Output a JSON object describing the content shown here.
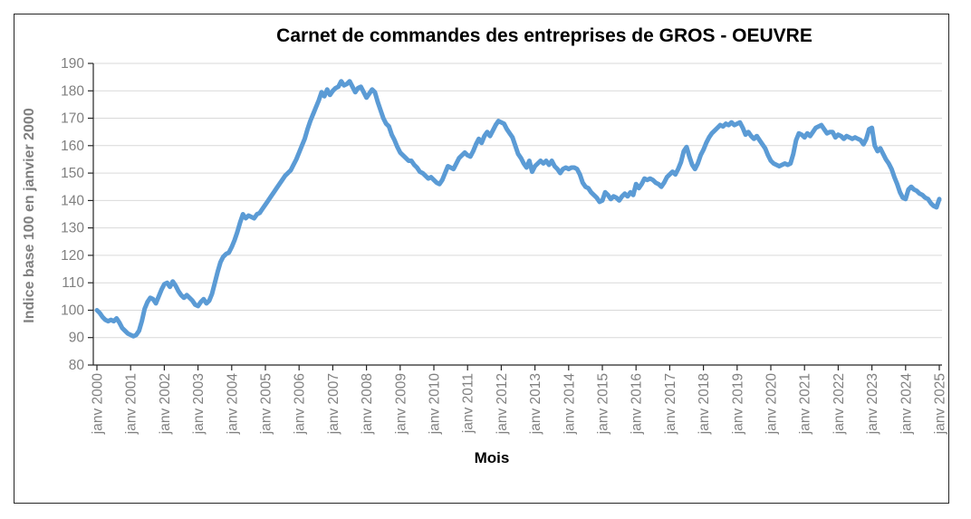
{
  "chart": {
    "title": "Carnet de commandes des entreprises de GROS - OEUVRE",
    "y_axis_title": "Indice base 100 en janvier 2000",
    "x_axis_title": "Mois"
  },
  "colors": {
    "line": "#5B9BD5",
    "grid": "#D9D9D9",
    "axis": "#262626",
    "tick_label": "#808080",
    "axis_title_gray": "#7f7f7f",
    "title_text": "#000000",
    "background": "#ffffff"
  },
  "chart_data": {
    "type": "line",
    "title": "Carnet de commandes des entreprises de GROS - OEUVRE",
    "xlabel": "Mois",
    "ylabel": "Indice base 100 en janvier 2000",
    "ylim": [
      80,
      190
    ],
    "y_ticks": [
      80,
      90,
      100,
      110,
      120,
      130,
      140,
      150,
      160,
      170,
      180,
      190
    ],
    "x_tick_labels": [
      "janv 2000",
      "janv 2001",
      "janv 2002",
      "janv 2003",
      "janv 2004",
      "janv 2005",
      "janv 2006",
      "janv 2007",
      "janv 2008",
      "janv 2009",
      "janv 2010",
      "janv 2011",
      "janv 2012",
      "janv 2013",
      "janv 2014",
      "janv 2015",
      "janv 2016",
      "janv 2017",
      "janv 2018",
      "janv 2019",
      "janv 2020",
      "janv 2021",
      "janv 2022",
      "janv 2023",
      "janv 2024",
      "janv 2025"
    ],
    "x_frequency": "monthly",
    "x_first": "janv 2000",
    "x_last": "janv 2025",
    "grid": true,
    "legend": "none",
    "series": [
      {
        "color": "#5B9BD5",
        "stroke_width": 5,
        "values": [
          100,
          99,
          97.5,
          96.5,
          96,
          96.5,
          96,
          97,
          95.5,
          93.5,
          92.5,
          91.5,
          91,
          90.5,
          91,
          92.5,
          96,
          100.5,
          103,
          104.5,
          104,
          102.5,
          105,
          107.5,
          109.5,
          110,
          108.5,
          110.5,
          109,
          107,
          105.5,
          104.5,
          105.5,
          104.5,
          103.5,
          102,
          101.5,
          103,
          104,
          102.5,
          103.5,
          106,
          110,
          114,
          117.5,
          119.5,
          120.5,
          121,
          123,
          125.5,
          128.5,
          132,
          135,
          133.5,
          134.5,
          134,
          133.5,
          135,
          135.5,
          137,
          138.5,
          140,
          141.5,
          143,
          144.5,
          146,
          147.5,
          149,
          150,
          151,
          153,
          155,
          157.5,
          160,
          162.5,
          166,
          169,
          171.5,
          174,
          176.5,
          179.5,
          178,
          180.5,
          178.5,
          180,
          181,
          181.5,
          183.5,
          182,
          182.5,
          183.5,
          181.5,
          179.5,
          181,
          181.5,
          179.5,
          177.5,
          179,
          180.5,
          179.5,
          176,
          173,
          170,
          168,
          167,
          164,
          162,
          159.5,
          157.5,
          156.5,
          155.5,
          154.5,
          154.5,
          153,
          152,
          150.5,
          150,
          149,
          148,
          148.5,
          147.5,
          146.5,
          146,
          147.5,
          150,
          152.5,
          152,
          151.5,
          153.5,
          155.5,
          156.5,
          157.5,
          156.5,
          156,
          158,
          160.5,
          162.5,
          161,
          163.5,
          165,
          163.5,
          165.5,
          167.5,
          169,
          168.5,
          168,
          166,
          164.5,
          163,
          160,
          157,
          155.5,
          153.5,
          152,
          154.5,
          150.5,
          152.5,
          153.5,
          154.5,
          153.5,
          154.5,
          153,
          154.5,
          152.5,
          151.5,
          150,
          151.5,
          152,
          151.5,
          152,
          152,
          151.5,
          149.5,
          146.5,
          145,
          144.5,
          143,
          142,
          141,
          139.5,
          140,
          143,
          142,
          140.5,
          141.5,
          141,
          140,
          141.5,
          142.5,
          141.5,
          143,
          142,
          146,
          144.5,
          146,
          148,
          147.5,
          148,
          147.5,
          146.5,
          146,
          145,
          146.5,
          148.5,
          149.5,
          150.5,
          149.5,
          151.5,
          154,
          158,
          159.5,
          156,
          153,
          151.5,
          153.5,
          156.5,
          158.5,
          161,
          163,
          164.5,
          165.5,
          166.5,
          167.5,
          167,
          168,
          167.5,
          168.5,
          167.5,
          168,
          168.5,
          166.5,
          164,
          165,
          163.5,
          162.5,
          163.5,
          162,
          160.5,
          159,
          156.5,
          154.5,
          153.5,
          153,
          152.5,
          153,
          153.5,
          153,
          153.5,
          157,
          162,
          164.5,
          164,
          163,
          164.5,
          163.5,
          165,
          166.5,
          167,
          167.5,
          166,
          164.5,
          165,
          165,
          163,
          164,
          163.5,
          162.5,
          163.5,
          163,
          162.5,
          163,
          162.5,
          162,
          160.5,
          162.5,
          166,
          166.5,
          160,
          158,
          159,
          157,
          155,
          153.5,
          151.5,
          148.5,
          146,
          143,
          141,
          140.5,
          144,
          145,
          144,
          143.5,
          142.5,
          142,
          141,
          140.5,
          139,
          138,
          137.5,
          140.5
        ]
      }
    ]
  }
}
